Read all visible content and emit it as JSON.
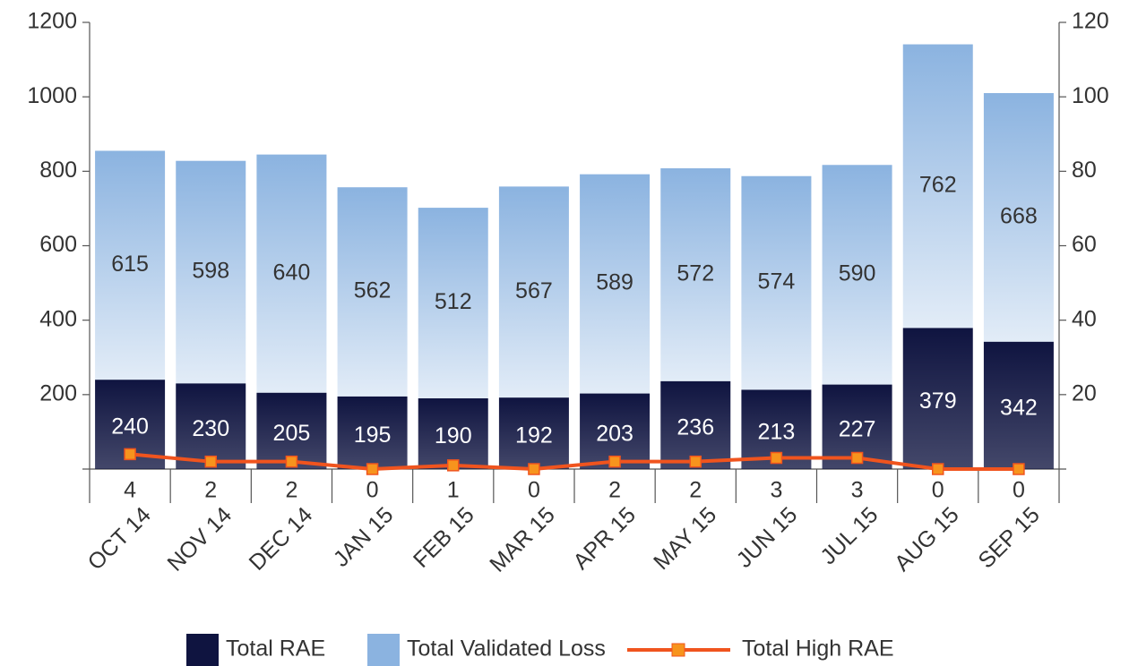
{
  "chart_data": {
    "type": "bar",
    "categories": [
      "OCT 14",
      "NOV 14",
      "DEC 14",
      "JAN 15",
      "FEB 15",
      "MAR 15",
      "APR 15",
      "MAY 15",
      "JUN 15",
      "JUL 15",
      "AUG 15",
      "SEP 15"
    ],
    "stacked": true,
    "series": [
      {
        "name": "Total RAE",
        "color": "#0f1440",
        "values": [
          240,
          230,
          205,
          195,
          190,
          192,
          203,
          236,
          213,
          227,
          379,
          342
        ]
      },
      {
        "name": "Total Validated Loss",
        "color": "#8bb3e0",
        "values": [
          615,
          598,
          640,
          562,
          512,
          567,
          589,
          572,
          574,
          590,
          762,
          668
        ]
      },
      {
        "name": "Total High RAE",
        "type": "line",
        "axis": "y2",
        "color": "#f0541e",
        "values": [
          4,
          2,
          2,
          0,
          1,
          0,
          2,
          2,
          3,
          3,
          0,
          0
        ]
      }
    ],
    "ylim": [
      0,
      1200
    ],
    "yticks": [
      200,
      400,
      600,
      800,
      1000,
      1200
    ],
    "y2lim": [
      0,
      120
    ],
    "y2ticks": [
      20,
      40,
      60,
      80,
      100,
      120
    ],
    "legend": "bottom"
  }
}
